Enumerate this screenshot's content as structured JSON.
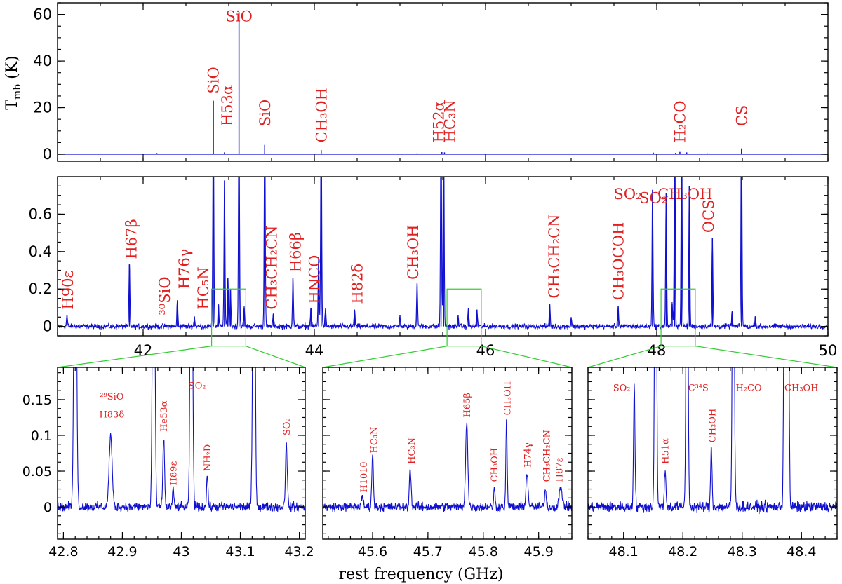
{
  "chart_data": [
    {
      "id": "top",
      "type": "line",
      "ylabel": "T",
      "ylabel_sub": "mb",
      "ylabel_unit": " (K)",
      "xlim": [
        41.0,
        50.0
      ],
      "ylim": [
        -3,
        65
      ],
      "yticks": [
        0,
        20,
        40,
        60
      ],
      "xticks": [
        42,
        44,
        46,
        48,
        50
      ],
      "series_color": "#1010d0",
      "peaks": [
        {
          "x": 42.16,
          "y": 0.5
        },
        {
          "x": 42.82,
          "y": 23
        },
        {
          "x": 42.95,
          "y": 0.8
        },
        {
          "x": 43.12,
          "y": 61
        },
        {
          "x": 43.42,
          "y": 4
        },
        {
          "x": 44.08,
          "y": 1.8
        },
        {
          "x": 45.2,
          "y": 0.4
        },
        {
          "x": 45.49,
          "y": 0.9
        },
        {
          "x": 45.52,
          "y": 0.8
        },
        {
          "x": 47.96,
          "y": 0.7
        },
        {
          "x": 48.22,
          "y": 0.6
        },
        {
          "x": 48.27,
          "y": 1.0
        },
        {
          "x": 48.35,
          "y": 0.8
        },
        {
          "x": 48.59,
          "y": 0.4
        },
        {
          "x": 48.99,
          "y": 2.5
        }
      ],
      "annotations": [
        {
          "text": "SiO",
          "x": 43.12,
          "y": 57,
          "rot": 0
        },
        {
          "text": "SiO",
          "x": 42.82,
          "y": 26,
          "rot": -90
        },
        {
          "text": "H53α",
          "x": 42.98,
          "y": 12,
          "rot": -90
        },
        {
          "text": "SiO",
          "x": 43.42,
          "y": 12,
          "rot": -90
        },
        {
          "text": "CH₃OH",
          "x": 44.08,
          "y": 5,
          "rot": -90
        },
        {
          "text": "H52α",
          "x": 45.45,
          "y": 5,
          "rot": -90
        },
        {
          "text": "HC₃N",
          "x": 45.58,
          "y": 5,
          "rot": -90
        },
        {
          "text": "H₂CO",
          "x": 48.27,
          "y": 5,
          "rot": -90
        },
        {
          "text": "CS",
          "x": 48.99,
          "y": 12,
          "rot": -90
        }
      ]
    },
    {
      "id": "middle",
      "type": "line",
      "xlim": [
        41.0,
        50.0
      ],
      "ylim": [
        -0.05,
        0.8
      ],
      "yticks": [
        0,
        0.2,
        0.4,
        0.6
      ],
      "ytick_labels": [
        "0",
        "0.2",
        "0.4",
        "0.6"
      ],
      "xticks": [
        42,
        44,
        46,
        48,
        50
      ],
      "noise": 0.012,
      "peaks": [
        {
          "x": 41.11,
          "y": 0.06
        },
        {
          "x": 41.84,
          "y": 0.33
        },
        {
          "x": 42.4,
          "y": 0.14
        },
        {
          "x": 42.6,
          "y": 0.05
        },
        {
          "x": 42.82,
          "y": 1.2
        },
        {
          "x": 42.88,
          "y": 0.11
        },
        {
          "x": 42.95,
          "y": 0.78
        },
        {
          "x": 42.99,
          "y": 0.26
        },
        {
          "x": 43.02,
          "y": 0.2
        },
        {
          "x": 43.12,
          "y": 1.2
        },
        {
          "x": 43.18,
          "y": 0.1
        },
        {
          "x": 43.42,
          "y": 1.2
        },
        {
          "x": 43.52,
          "y": 0.06
        },
        {
          "x": 43.75,
          "y": 0.26
        },
        {
          "x": 43.96,
          "y": 0.1
        },
        {
          "x": 44.05,
          "y": 0.37
        },
        {
          "x": 44.08,
          "y": 1.2
        },
        {
          "x": 44.13,
          "y": 0.09
        },
        {
          "x": 44.47,
          "y": 0.09
        },
        {
          "x": 45.0,
          "y": 0.06
        },
        {
          "x": 45.2,
          "y": 0.23
        },
        {
          "x": 45.48,
          "y": 1.2
        },
        {
          "x": 45.51,
          "y": 1.2
        },
        {
          "x": 45.68,
          "y": 0.06
        },
        {
          "x": 45.8,
          "y": 0.1
        },
        {
          "x": 45.9,
          "y": 0.09
        },
        {
          "x": 46.75,
          "y": 0.12
        },
        {
          "x": 47.0,
          "y": 0.05
        },
        {
          "x": 47.55,
          "y": 0.11
        },
        {
          "x": 47.95,
          "y": 0.73
        },
        {
          "x": 48.11,
          "y": 0.71
        },
        {
          "x": 48.18,
          "y": 0.12
        },
        {
          "x": 48.21,
          "y": 1.2
        },
        {
          "x": 48.29,
          "y": 1.2
        },
        {
          "x": 48.38,
          "y": 0.75
        },
        {
          "x": 48.65,
          "y": 0.47
        },
        {
          "x": 48.88,
          "y": 0.08
        },
        {
          "x": 48.99,
          "y": 1.2
        },
        {
          "x": 49.15,
          "y": 0.05
        }
      ],
      "annotations": [
        {
          "text": "H90ε",
          "x": 41.12,
          "y": 0.09,
          "rot": -90
        },
        {
          "text": "H67β",
          "x": 41.86,
          "y": 0.36,
          "rot": -90
        },
        {
          "text": "³⁰SiO",
          "x": 42.25,
          "y": 0.06,
          "rot": -90
        },
        {
          "text": "H76γ",
          "x": 42.48,
          "y": 0.2,
          "rot": -90
        },
        {
          "text": "HC₅N",
          "x": 42.7,
          "y": 0.09,
          "rot": -90
        },
        {
          "text": "CH₃CH₂CN",
          "x": 43.5,
          "y": 0.09,
          "rot": -90
        },
        {
          "text": "H66β",
          "x": 43.78,
          "y": 0.29,
          "rot": -90
        },
        {
          "text": "HNCO",
          "x": 44.0,
          "y": 0.12,
          "rot": -90
        },
        {
          "text": "H82δ",
          "x": 44.5,
          "y": 0.12,
          "rot": -90
        },
        {
          "text": "CH₃OH",
          "x": 45.15,
          "y": 0.25,
          "rot": -90
        },
        {
          "text": "CH₃CH₂CN",
          "x": 46.8,
          "y": 0.15,
          "rot": -90
        },
        {
          "text": "CH₃OCOH",
          "x": 47.55,
          "y": 0.14,
          "rot": -90
        },
        {
          "text": "SO₂",
          "x": 47.66,
          "y": 0.68,
          "rot": 0
        },
        {
          "text": "SO₂",
          "x": 47.96,
          "y": 0.66,
          "rot": 0
        },
        {
          "text": "CH₃OH",
          "x": 48.33,
          "y": 0.68,
          "rot": 0
        },
        {
          "text": "OCS",
          "x": 48.6,
          "y": 0.5,
          "rot": -90
        }
      ],
      "zoom_boxes": [
        {
          "x0": 42.8,
          "x1": 43.2,
          "y0": 0.0,
          "y1": 0.2
        },
        {
          "x0": 45.55,
          "x1": 45.95,
          "y0": 0.0,
          "y1": 0.2
        },
        {
          "x0": 48.05,
          "x1": 48.45,
          "y0": 0.0,
          "y1": 0.2
        }
      ]
    },
    {
      "id": "zoom1",
      "type": "line",
      "xlim": [
        42.79,
        43.21
      ],
      "ylim": [
        -0.045,
        0.195
      ],
      "yticks": [
        0,
        0.05,
        0.1,
        0.15
      ],
      "ytick_labels": [
        "0",
        "0.05",
        "0.1",
        "0.15"
      ],
      "xticks": [
        42.8,
        42.9,
        43.0,
        43.1,
        43.2
      ],
      "xtick_labels": [
        "42.8",
        "42.9",
        "43",
        "43.1",
        "43.2"
      ],
      "show_yticklabels": true,
      "noise": 0.0055,
      "peaks": [
        {
          "x": 42.82,
          "y": 0.6,
          "w": 0.002
        },
        {
          "x": 42.88,
          "y": 0.1,
          "w": 0.0025
        },
        {
          "x": 42.953,
          "y": 0.6,
          "w": 0.0018
        },
        {
          "x": 42.97,
          "y": 0.095,
          "w": 0.0015
        },
        {
          "x": 42.986,
          "y": 0.025,
          "w": 0.0012
        },
        {
          "x": 43.017,
          "y": 0.6,
          "w": 0.0018
        },
        {
          "x": 43.044,
          "y": 0.045,
          "w": 0.0012
        },
        {
          "x": 43.123,
          "y": 0.6,
          "w": 0.0018
        },
        {
          "x": 43.178,
          "y": 0.092,
          "w": 0.0015
        }
      ],
      "annotations": [
        {
          "text": "²⁹SiO",
          "x": 42.882,
          "y": 0.15,
          "rot": 0
        },
        {
          "text": "H83δ",
          "x": 42.882,
          "y": 0.125,
          "rot": 0
        },
        {
          "text": "He53α",
          "x": 42.97,
          "y": 0.105,
          "rot": -90
        },
        {
          "text": "H89ε",
          "x": 42.986,
          "y": 0.03,
          "rot": -90
        },
        {
          "text": "SO₂",
          "x": 43.027,
          "y": 0.165,
          "rot": 0
        },
        {
          "text": "NH₂D",
          "x": 43.044,
          "y": 0.05,
          "rot": -90
        },
        {
          "text": "SO₂",
          "x": 43.178,
          "y": 0.1,
          "rot": -90
        }
      ]
    },
    {
      "id": "zoom2",
      "type": "line",
      "xlim": [
        45.51,
        45.96
      ],
      "ylim": [
        -0.045,
        0.195
      ],
      "yticks": [
        0,
        0.05,
        0.1,
        0.15
      ],
      "xticks": [
        45.6,
        45.7,
        45.8,
        45.9
      ],
      "xtick_labels": [
        "45.6",
        "45.7",
        "45.8",
        "45.9"
      ],
      "show_yticklabels": false,
      "noise": 0.0055,
      "peaks": [
        {
          "x": 45.581,
          "y": 0.012,
          "w": 0.002
        },
        {
          "x": 45.6,
          "y": 0.072,
          "w": 0.0015
        },
        {
          "x": 45.668,
          "y": 0.055,
          "w": 0.0015
        },
        {
          "x": 45.77,
          "y": 0.118,
          "w": 0.002
        },
        {
          "x": 45.82,
          "y": 0.025,
          "w": 0.0012
        },
        {
          "x": 45.842,
          "y": 0.122,
          "w": 0.0012
        },
        {
          "x": 45.879,
          "y": 0.045,
          "w": 0.002
        },
        {
          "x": 45.912,
          "y": 0.025,
          "w": 0.0015
        },
        {
          "x": 45.94,
          "y": 0.025,
          "w": 0.003
        }
      ],
      "annotations": [
        {
          "text": "H101θ",
          "x": 45.584,
          "y": 0.02,
          "rot": -90
        },
        {
          "text": "HC₃N",
          "x": 45.602,
          "y": 0.075,
          "rot": -90
        },
        {
          "text": "HC₃N",
          "x": 45.67,
          "y": 0.06,
          "rot": -90
        },
        {
          "text": "H65β",
          "x": 45.77,
          "y": 0.125,
          "rot": -90
        },
        {
          "text": "CH₃OH",
          "x": 45.82,
          "y": 0.035,
          "rot": -90
        },
        {
          "text": "CH₃OH",
          "x": 45.843,
          "y": 0.128,
          "rot": -90
        },
        {
          "text": "H74γ",
          "x": 45.88,
          "y": 0.055,
          "rot": -90
        },
        {
          "text": "CH₃CH₂CN",
          "x": 45.914,
          "y": 0.035,
          "rot": -90
        },
        {
          "text": "H87ε",
          "x": 45.937,
          "y": 0.035,
          "rot": -90
        }
      ]
    },
    {
      "id": "zoom3",
      "type": "line",
      "xlim": [
        48.04,
        48.46
      ],
      "ylim": [
        -0.045,
        0.195
      ],
      "yticks": [
        0,
        0.05,
        0.1,
        0.15
      ],
      "xticks": [
        48.1,
        48.2,
        48.3,
        48.4
      ],
      "xtick_labels": [
        "48.1",
        "48.2",
        "48.3",
        "48.4"
      ],
      "show_yticklabels": false,
      "noise": 0.0065,
      "peaks": [
        {
          "x": 48.118,
          "y": 0.175,
          "w": 0.0012
        },
        {
          "x": 48.154,
          "y": 0.6,
          "w": 0.0015
        },
        {
          "x": 48.17,
          "y": 0.055,
          "w": 0.0012
        },
        {
          "x": 48.207,
          "y": 0.6,
          "w": 0.0015
        },
        {
          "x": 48.248,
          "y": 0.085,
          "w": 0.0012
        },
        {
          "x": 48.285,
          "y": 0.6,
          "w": 0.0015
        },
        {
          "x": 48.372,
          "y": 0.6,
          "w": 0.0015
        },
        {
          "x": 48.377,
          "y": 0.6,
          "w": 0.0015
        }
      ],
      "annotations": [
        {
          "text": "SO₂",
          "x": 48.097,
          "y": 0.162,
          "rot": 0
        },
        {
          "text": "H51α",
          "x": 48.17,
          "y": 0.06,
          "rot": -90
        },
        {
          "text": "C³⁴S",
          "x": 48.226,
          "y": 0.162,
          "rot": 0
        },
        {
          "text": "CH₃OH",
          "x": 48.249,
          "y": 0.09,
          "rot": -90
        },
        {
          "text": "H₂CO",
          "x": 48.311,
          "y": 0.162,
          "rot": 0
        },
        {
          "text": "CH₃OH",
          "x": 48.4,
          "y": 0.162,
          "rot": 0
        }
      ]
    }
  ],
  "xlabel": "rest frequency (GHz)"
}
